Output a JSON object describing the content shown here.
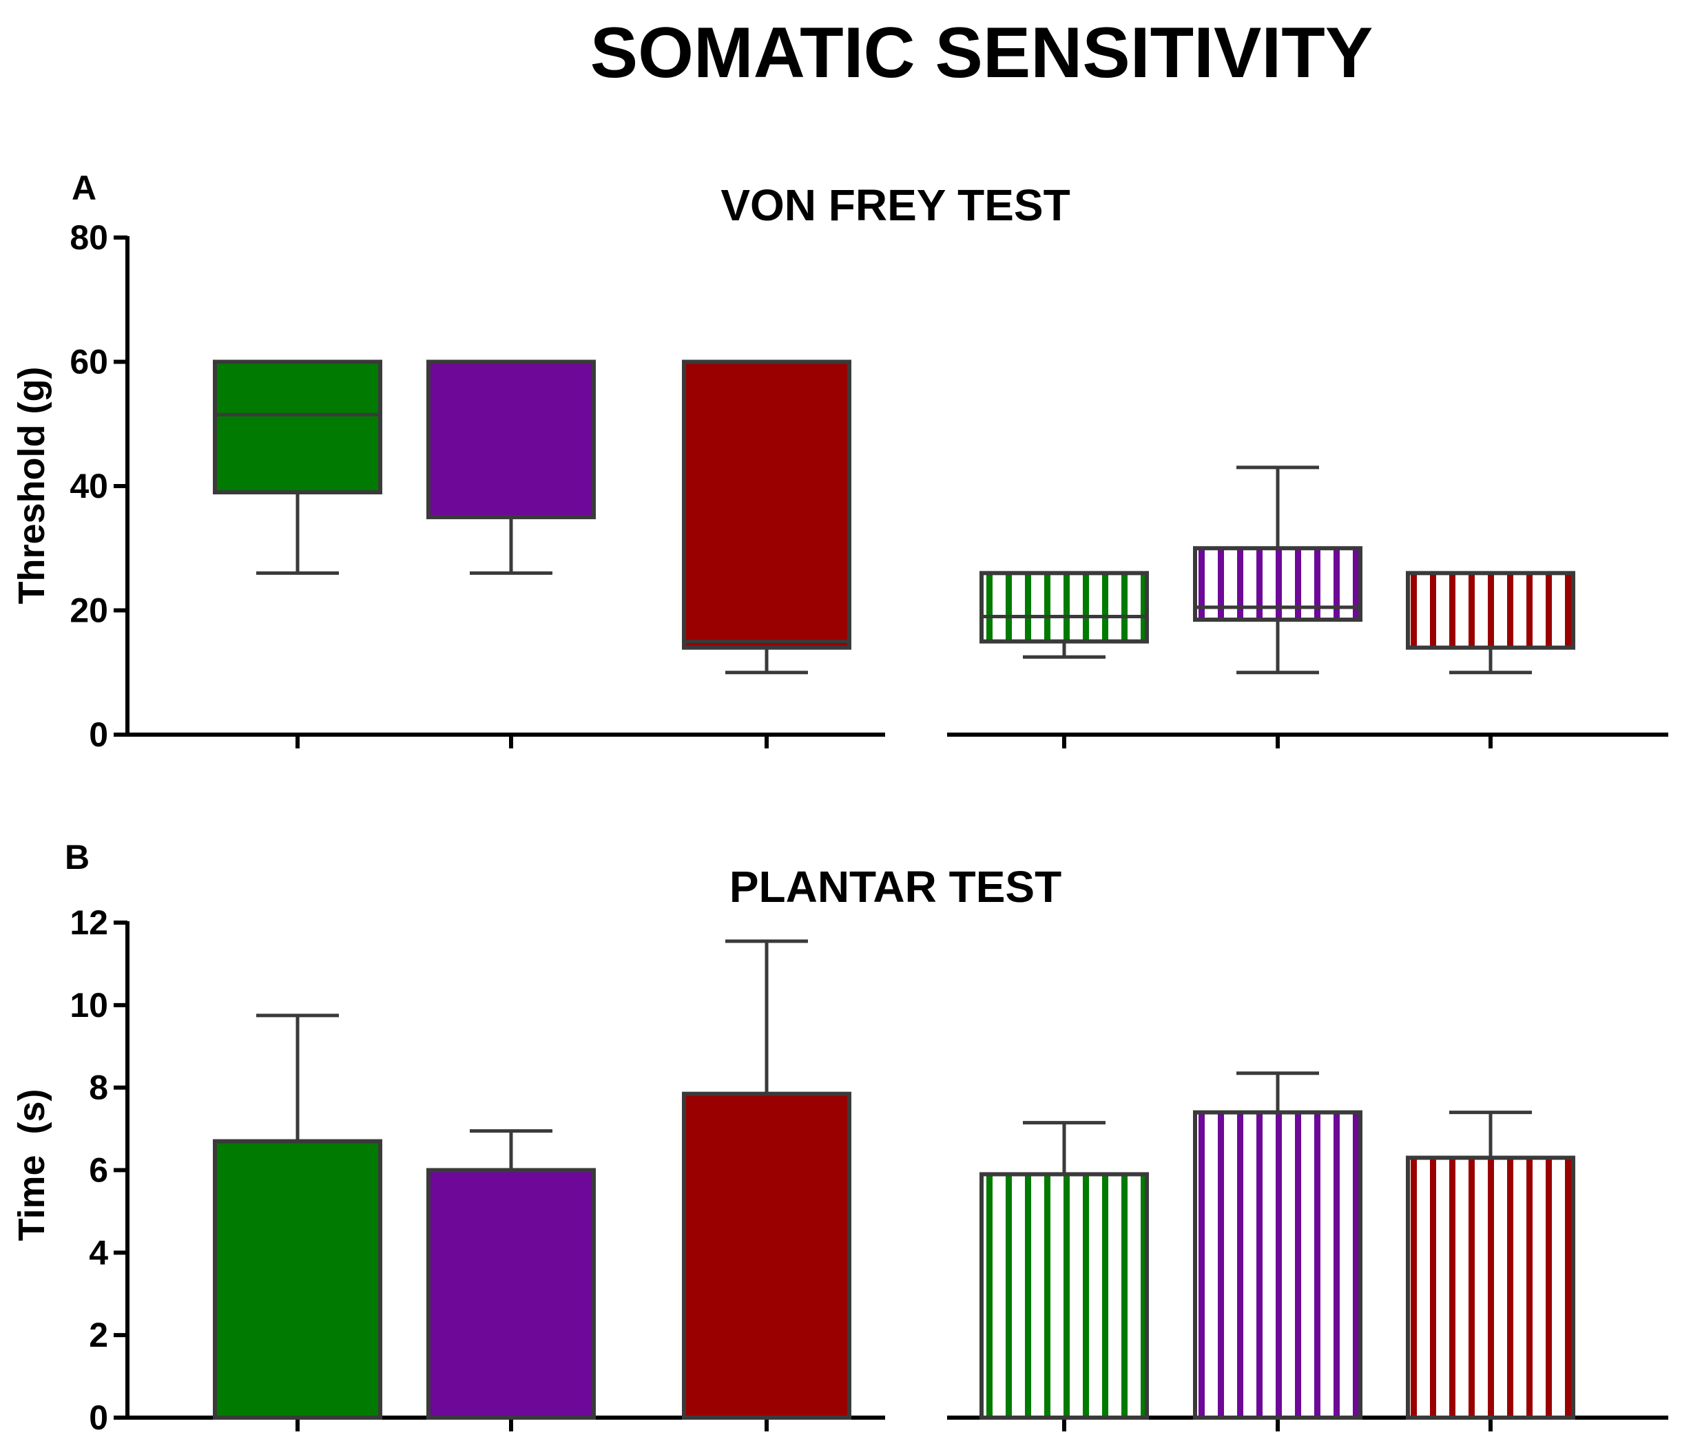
{
  "figure": {
    "title": "SOMATIC SENSITIVITY"
  },
  "colors": {
    "green": "#007a00",
    "purple": "#6e0898",
    "red": "#9a0000",
    "outline": "#3a3a3a",
    "axis": "#000000"
  },
  "chart_data": [
    {
      "type": "boxplot",
      "panel_label": "A",
      "title": "VON FREY TEST",
      "ylabel": "Threshold (g)",
      "xlabel": "",
      "ylim": [
        0,
        80
      ],
      "yticks": [
        0,
        20,
        40,
        60,
        80
      ],
      "grid": false,
      "groups": [
        {
          "color": "green",
          "pattern": "solid",
          "min": 26,
          "q1": 39,
          "median": 51.5,
          "q3": 60,
          "max": 60
        },
        {
          "color": "purple",
          "pattern": "solid",
          "min": 26,
          "q1": 35,
          "median": 60,
          "q3": 60,
          "max": 60
        },
        {
          "color": "red",
          "pattern": "solid",
          "min": 10,
          "q1": 14,
          "median": 15,
          "q3": 60,
          "max": 60
        },
        {
          "color": "green",
          "pattern": "striped",
          "min": 12.5,
          "q1": 15,
          "median": 19,
          "q3": 26,
          "max": 26
        },
        {
          "color": "purple",
          "pattern": "striped",
          "min": 10,
          "q1": 18.5,
          "median": 20.5,
          "q3": 30,
          "max": 43
        },
        {
          "color": "red",
          "pattern": "striped",
          "min": 10,
          "q1": 14,
          "median": 26,
          "q3": 26,
          "max": 26
        }
      ]
    },
    {
      "type": "bar",
      "panel_label": "B",
      "title": "PLANTAR TEST",
      "ylabel": "Time  (s)",
      "xlabel": "",
      "ylim": [
        0,
        12
      ],
      "yticks": [
        0,
        2,
        4,
        6,
        8,
        10,
        12
      ],
      "grid": false,
      "groups": [
        {
          "color": "green",
          "pattern": "solid",
          "value": 6.7,
          "error": 3.05
        },
        {
          "color": "purple",
          "pattern": "solid",
          "value": 6.0,
          "error": 0.95
        },
        {
          "color": "red",
          "pattern": "solid",
          "value": 7.85,
          "error": 3.7
        },
        {
          "color": "green",
          "pattern": "striped",
          "value": 5.9,
          "error": 1.25
        },
        {
          "color": "purple",
          "pattern": "striped",
          "value": 7.4,
          "error": 0.95
        },
        {
          "color": "red",
          "pattern": "striped",
          "value": 6.3,
          "error": 1.1
        }
      ]
    }
  ]
}
